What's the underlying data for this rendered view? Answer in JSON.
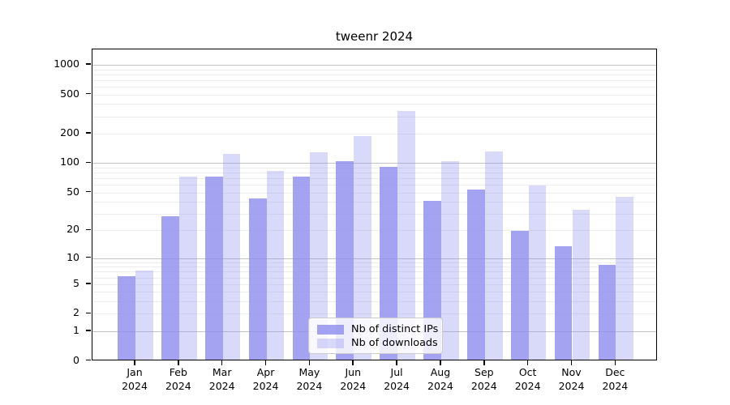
{
  "title": "tweenr 2024",
  "chart_data": {
    "type": "bar",
    "title": "tweenr 2024",
    "scale": "log1p",
    "grid": true,
    "legend_position": "lower center",
    "xlabel": "",
    "ylabel": "",
    "ylim": [
      0,
      1430
    ],
    "yticks": [
      0,
      1,
      2,
      5,
      10,
      20,
      50,
      100,
      200,
      500,
      1000
    ],
    "months": [
      "Jan",
      "Feb",
      "Mar",
      "Apr",
      "May",
      "Jun",
      "Jul",
      "Aug",
      "Sep",
      "Oct",
      "Nov",
      "Dec"
    ],
    "year": "2024",
    "categories": [
      "Jan 2024",
      "Feb 2024",
      "Mar 2024",
      "Apr 2024",
      "May 2024",
      "Jun 2024",
      "Jul 2024",
      "Aug 2024",
      "Sep 2024",
      "Oct 2024",
      "Nov 2024",
      "Dec 2024"
    ],
    "series": [
      {
        "name": "Nb of distinct IPs",
        "color": "rgba(140,140,238,0.80)",
        "values": [
          6,
          27,
          70,
          42,
          70,
          100,
          88,
          39,
          51,
          19,
          13,
          8
        ]
      },
      {
        "name": "Nb of downloads",
        "color": "rgba(140,140,238,0.33)",
        "values": [
          7,
          70,
          120,
          80,
          125,
          183,
          330,
          100,
          126,
          57,
          32,
          43
        ]
      }
    ],
    "palette": {
      "bar_base": "#8c8cee",
      "grid_major": "#c3c3c3",
      "grid_minor": "#ededed",
      "axis": "#000000",
      "legend_border": "#cccccc"
    }
  }
}
